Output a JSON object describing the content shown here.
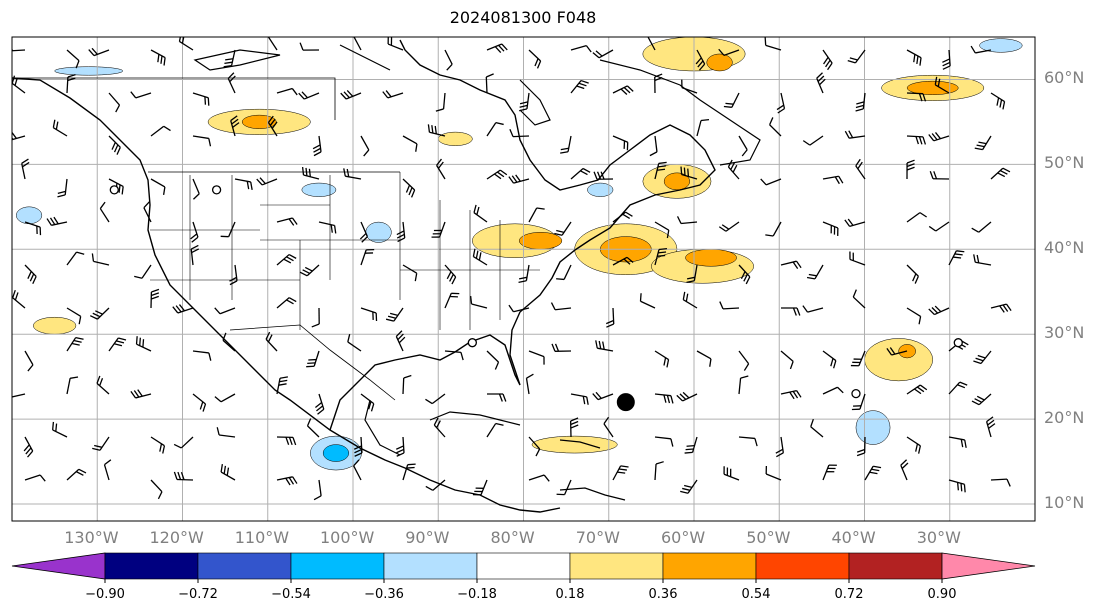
{
  "title": "2024081300 F048",
  "lat_labels": [
    "60°N",
    "50°N",
    "40°N",
    "30°N",
    "20°N",
    "10°N"
  ],
  "lon_labels": [
    "130°W",
    "120°W",
    "110°W",
    "100°W",
    "90°W",
    "80°W",
    "70°W",
    "60°W",
    "50°W",
    "40°W",
    "30°W"
  ],
  "colorbar": {
    "ticks": [
      "−0.90",
      "−0.72",
      "−0.54",
      "−0.36",
      "−0.18",
      "0.18",
      "0.36",
      "0.54",
      "0.72",
      "0.90"
    ],
    "colors": [
      "#9933cc",
      "#000080",
      "#3355cc",
      "#00bbff",
      "#b3e0ff",
      "#ffffff",
      "#ffe680",
      "#ffa500",
      "#ff4500",
      "#b22222",
      "#ff88aa"
    ]
  },
  "colors": {
    "grid": "#b0b0b0",
    "coast": "#000000",
    "pos_light": "#ffe680",
    "pos_mid": "#ffa500",
    "neg_light": "#b3e0ff",
    "neg_mid": "#00bbff"
  },
  "chart_data": {
    "type": "map",
    "projection": "equirectangular",
    "extent": {
      "lon_min": -140,
      "lon_max": -20,
      "lat_min": 8,
      "lat_max": 65
    },
    "grid": true,
    "features": [
      "coastlines",
      "borders",
      "us-states",
      "wind-barbs",
      "filled-contours"
    ],
    "filled_regions": [
      {
        "level": "0.18–0.36",
        "lon": -111,
        "lat": 55,
        "rx": 6,
        "ry": 1.5
      },
      {
        "level": "0.36–0.54",
        "lon": -111,
        "lat": 55,
        "rx": 2,
        "ry": 0.8
      },
      {
        "level": "0.18–0.36",
        "lon": -60,
        "lat": 63,
        "rx": 6,
        "ry": 2
      },
      {
        "level": "0.36–0.54",
        "lon": -57,
        "lat": 62,
        "rx": 1.5,
        "ry": 1
      },
      {
        "level": "0.18–0.36",
        "lon": -32,
        "lat": 59,
        "rx": 6,
        "ry": 1.5
      },
      {
        "level": "0.36–0.54",
        "lon": -32,
        "lat": 59,
        "rx": 3,
        "ry": 0.8
      },
      {
        "level": "0.18–0.36",
        "lon": -81,
        "lat": 41,
        "rx": 5,
        "ry": 2
      },
      {
        "level": "0.36–0.54",
        "lon": -78,
        "lat": 41,
        "rx": 2.5,
        "ry": 1
      },
      {
        "level": "0.18–0.36",
        "lon": -68,
        "lat": 40,
        "rx": 6,
        "ry": 3
      },
      {
        "level": "0.36–0.54",
        "lon": -68,
        "lat": 40,
        "rx": 3,
        "ry": 1.5
      },
      {
        "level": "0.18–0.36",
        "lon": -62,
        "lat": 48,
        "rx": 4,
        "ry": 2
      },
      {
        "level": "0.36–0.54",
        "lon": -62,
        "lat": 48,
        "rx": 1.5,
        "ry": 1
      },
      {
        "level": "0.18–0.36",
        "lon": -59,
        "lat": 38,
        "rx": 6,
        "ry": 2
      },
      {
        "level": "0.36–0.54",
        "lon": -58,
        "lat": 39,
        "rx": 3,
        "ry": 1
      },
      {
        "level": "0.18–0.36",
        "lon": -36,
        "lat": 27,
        "rx": 4,
        "ry": 2.5
      },
      {
        "level": "0.36–0.54",
        "lon": -35,
        "lat": 28,
        "rx": 1,
        "ry": 0.8
      },
      {
        "level": "0.18–0.36",
        "lon": -74,
        "lat": 17,
        "rx": 5,
        "ry": 1
      },
      {
        "level": "0.18–0.36",
        "lon": -135,
        "lat": 31,
        "rx": 2.5,
        "ry": 1
      },
      {
        "level": "0.18–0.36",
        "lon": -88,
        "lat": 53,
        "rx": 2,
        "ry": 0.8
      },
      {
        "level": "-0.36–-0.18",
        "lon": -102,
        "lat": 16,
        "rx": 3,
        "ry": 2
      },
      {
        "level": "-0.54–-0.36",
        "lon": -102,
        "lat": 16,
        "rx": 1.5,
        "ry": 1
      },
      {
        "level": "-0.36–-0.18",
        "lon": -39,
        "lat": 19,
        "rx": 2,
        "ry": 2
      },
      {
        "level": "-0.36–-0.18",
        "lon": -131,
        "lat": 61,
        "rx": 4,
        "ry": 0.5
      },
      {
        "level": "-0.36–-0.18",
        "lon": -104,
        "lat": 47,
        "rx": 2,
        "ry": 0.8
      },
      {
        "level": "-0.36–-0.18",
        "lon": -97,
        "lat": 42,
        "rx": 1.5,
        "ry": 1.2
      },
      {
        "level": "-0.36–-0.18",
        "lon": -71,
        "lat": 47,
        "rx": 1.5,
        "ry": 0.8
      },
      {
        "level": "-0.36–-0.18",
        "lon": -138,
        "lat": 44,
        "rx": 1.5,
        "ry": 1
      },
      {
        "level": "-0.36–-0.18",
        "lon": -24,
        "lat": 64,
        "rx": 2.5,
        "ry": 0.8
      }
    ],
    "station_markers": [
      {
        "lon": -128,
        "lat": 47
      },
      {
        "lon": -116,
        "lat": 47
      },
      {
        "lon": -86,
        "lat": 29
      },
      {
        "lon": -29,
        "lat": 29
      },
      {
        "lon": -41,
        "lat": 23
      }
    ],
    "hurricane_marker": {
      "lon": -68,
      "lat": 22
    }
  }
}
